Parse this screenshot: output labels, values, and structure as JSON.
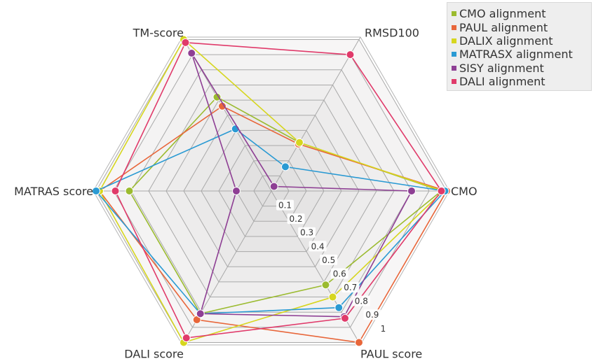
{
  "chart_data": {
    "type": "radar",
    "axes": [
      "CMO",
      "RMSD100",
      "TM-score",
      "MATRAS score",
      "DALI score",
      "PAUL score"
    ],
    "ticks": [
      "0.1",
      "0.2",
      "0.3",
      "0.4",
      "0.5",
      "0.6",
      "0.7",
      "0.8",
      "0.9",
      "1"
    ],
    "range": [
      0,
      1
    ],
    "grid": true,
    "legend_position": "top-right",
    "series": [
      {
        "name": "CMO alignment",
        "color": "#9bbb2f",
        "values": [
          0.97,
          0.32,
          0.62,
          0.81,
          0.81,
          0.62
        ]
      },
      {
        "name": "PAUL alignment",
        "color": "#e8663a",
        "values": [
          1.0,
          0.31,
          0.56,
          0.98,
          0.85,
          1.0
        ]
      },
      {
        "name": "DALIX alignment",
        "color": "#d6d61f",
        "values": [
          0.98,
          0.32,
          1.0,
          0.98,
          1.0,
          0.7
        ]
      },
      {
        "name": "MATRASX alignment",
        "color": "#2a9ad3",
        "values": [
          0.99,
          0.16,
          0.41,
          1.0,
          0.81,
          0.77
        ]
      },
      {
        "name": "SISY alignment",
        "color": "#8e3f94",
        "values": [
          0.8,
          0.03,
          0.91,
          0.2,
          0.81,
          0.83
        ]
      },
      {
        "name": "DALI alignment",
        "color": "#e03a6a",
        "values": [
          0.97,
          0.9,
          0.98,
          0.89,
          0.97,
          0.84
        ]
      }
    ]
  }
}
